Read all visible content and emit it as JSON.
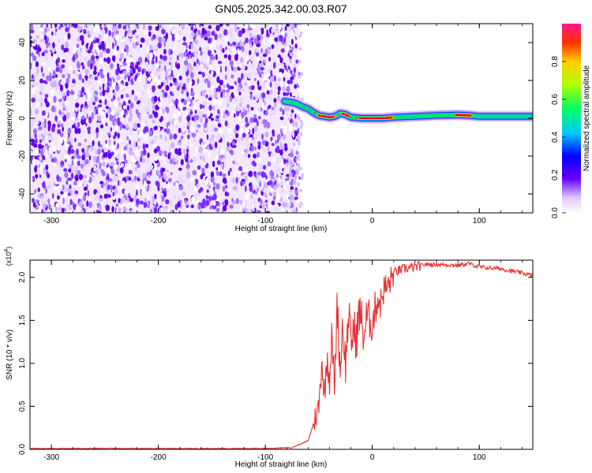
{
  "title": "GN05.2025.342.00.03.R07",
  "chart_data": [
    {
      "type": "heatmap",
      "xlabel": "Height of straight line (km)",
      "ylabel": "Frequency (Hz)",
      "xlim": [
        -320,
        150
      ],
      "ylim": [
        -50,
        50
      ],
      "xticks": [
        -300,
        -200,
        -100,
        0,
        100
      ],
      "yticks": [
        -40,
        -20,
        0,
        20,
        40
      ],
      "noise_region_x": [
        -320,
        -68
      ],
      "ridge": {
        "x": [
          -82,
          -72,
          -65,
          -60,
          -55,
          -50,
          -45,
          -40,
          -35,
          -30,
          -25,
          -20,
          -15,
          -10,
          0,
          10,
          20,
          40,
          60,
          80,
          90,
          100,
          120,
          140,
          150
        ],
        "y": [
          9,
          8,
          6,
          5,
          3,
          1.5,
          1,
          0.5,
          1,
          2.5,
          2,
          0.5,
          0.3,
          0,
          0,
          0,
          0.5,
          1,
          1.5,
          1.8,
          1.5,
          1,
          1,
          1,
          1
        ]
      },
      "colorbar": {
        "label": "Normalized spectral amplitude",
        "range": [
          0,
          1
        ],
        "ticks": [
          "0.0",
          "0.2",
          "0.4",
          "0.6",
          "0.8"
        ]
      },
      "grid": false
    },
    {
      "type": "line",
      "xlabel": "Height of straight line (km)",
      "ylabel": "SNR (10 * v/v)",
      "yscale_label": "(x10",
      "yscale_exp": "4",
      "xlim": [
        -320,
        150
      ],
      "ylim": [
        0,
        2.2
      ],
      "xticks": [
        -300,
        -200,
        -100,
        0,
        100
      ],
      "yticks": [
        "0.0",
        "0.5",
        "1.0",
        "1.5",
        "2.0"
      ],
      "color": "#e83030",
      "series": [
        {
          "x": [
            -320,
            -200,
            -100,
            -75,
            -60,
            -55,
            -50,
            -47,
            -45,
            -42,
            -40,
            -38,
            -35,
            -33,
            -30,
            -28,
            -25,
            -22,
            -20,
            -18,
            -15,
            -12,
            -10,
            -8,
            -5,
            -2,
            0,
            2,
            5,
            8,
            10,
            15,
            20,
            25,
            30,
            40,
            50,
            60,
            80,
            90,
            100,
            120,
            140,
            150
          ],
          "y": [
            0.01,
            0.01,
            0.01,
            0.02,
            0.1,
            0.3,
            0.5,
            1.05,
            0.6,
            1.1,
            0.8,
            1.3,
            0.7,
            1.75,
            0.9,
            1.45,
            1.0,
            1.6,
            1.2,
            1.4,
            1.3,
            1.6,
            1.5,
            1.3,
            1.55,
            1.5,
            1.45,
            1.6,
            1.75,
            1.7,
            1.85,
            1.9,
            2.05,
            2.08,
            2.1,
            2.12,
            2.15,
            2.15,
            2.14,
            2.16,
            2.12,
            2.1,
            2.05,
            2.02
          ]
        }
      ],
      "grid": false
    }
  ]
}
